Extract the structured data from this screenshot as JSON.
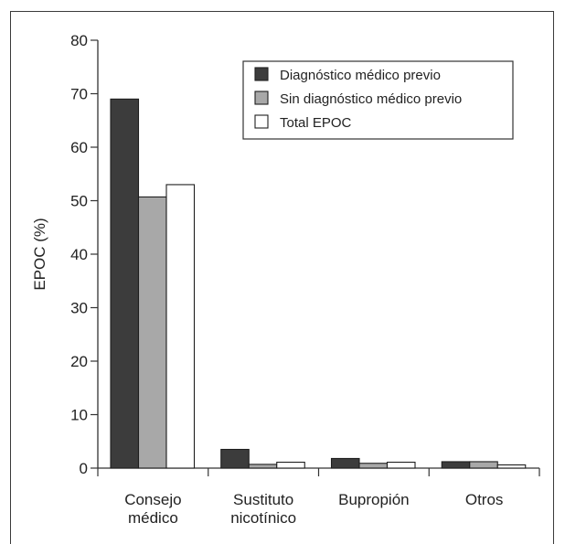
{
  "chart_data": {
    "type": "bar",
    "title": "",
    "xlabel": "",
    "ylabel": "EPOC (%)",
    "ylim": [
      0,
      80
    ],
    "yticks": [
      0,
      10,
      20,
      30,
      40,
      50,
      60,
      70,
      80
    ],
    "grid": false,
    "legend_position": "top-right",
    "categories": [
      [
        "Consejo",
        "médico"
      ],
      [
        "Sustituto",
        "nicotínico"
      ],
      [
        "Bupropión"
      ],
      [
        "Otros"
      ]
    ],
    "series": [
      {
        "name": "Diagnóstico médico previo",
        "color": "#3c3c3c",
        "values": [
          69,
          3.5,
          1.8,
          1.2
        ]
      },
      {
        "name": "Sin diagnóstico médico previo",
        "color": "#a8a8a8",
        "values": [
          50.7,
          0.7,
          0.9,
          1.2
        ]
      },
      {
        "name": "Total EPOC",
        "color": "#ffffff",
        "values": [
          53,
          1.1,
          1.1,
          0.6
        ]
      }
    ]
  }
}
